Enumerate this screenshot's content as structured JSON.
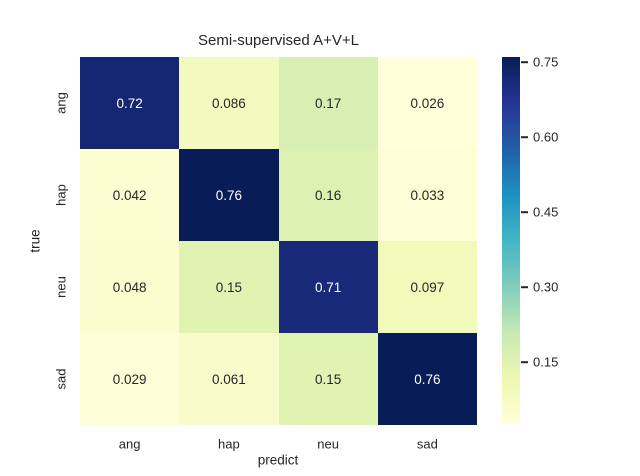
{
  "figure": {
    "background": "#ffffff",
    "text_color": "#262626",
    "annotation_light_text": "#ffffff"
  },
  "chart_data": {
    "type": "heatmap",
    "title": "Semi-supervised A+V+L",
    "xlabel": "predict",
    "ylabel": "true",
    "x_categories": [
      "ang",
      "hap",
      "neu",
      "sad"
    ],
    "y_categories": [
      "ang",
      "hap",
      "neu",
      "sad"
    ],
    "values": [
      [
        0.72,
        0.086,
        0.17,
        0.026
      ],
      [
        0.042,
        0.76,
        0.16,
        0.033
      ],
      [
        0.048,
        0.15,
        0.71,
        0.097
      ],
      [
        0.029,
        0.061,
        0.15,
        0.76
      ]
    ],
    "labels": [
      [
        "0.72",
        "0.086",
        "0.17",
        "0.026"
      ],
      [
        "0.042",
        "0.76",
        "0.16",
        "0.033"
      ],
      [
        "0.048",
        "0.15",
        "0.71",
        "0.097"
      ],
      [
        "0.029",
        "0.061",
        "0.15",
        "0.76"
      ]
    ],
    "vmin": 0.026,
    "vmax": 0.76,
    "grid": false,
    "colormap": {
      "name": "YlGnBu",
      "stops": [
        "#ffffd9",
        "#edf8b1",
        "#c7e9b4",
        "#7fcdbb",
        "#41b6c4",
        "#1d91c0",
        "#225ea8",
        "#253494",
        "#081d58"
      ]
    },
    "colorbar": {
      "position": "right",
      "tick_labels": [
        "0.75",
        "0.60",
        "0.45",
        "0.30",
        "0.15"
      ],
      "tick_values": [
        0.75,
        0.6,
        0.45,
        0.3,
        0.15
      ]
    }
  }
}
